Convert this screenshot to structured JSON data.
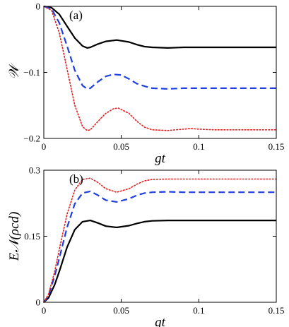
{
  "chart_data": [
    {
      "type": "line",
      "panel_label": "(a)",
      "xlabel": "gt",
      "ylabel": "𝒲",
      "xlim": [
        0,
        0.15
      ],
      "ylim": [
        -0.2,
        0
      ],
      "xticks": [
        0,
        0.05,
        0.1,
        0.15
      ],
      "xtick_labels": [
        "0",
        "0.05",
        "0.1",
        "0.15"
      ],
      "yticks": [
        0,
        -0.1,
        -0.2
      ],
      "ytick_labels": [
        "0",
        "−0.1",
        "−0.2"
      ],
      "grid": false,
      "series": [
        {
          "color": "#000000",
          "style": "solid",
          "x": [
            0,
            0.005,
            0.01,
            0.015,
            0.02,
            0.025,
            0.028,
            0.03,
            0.035,
            0.04,
            0.047,
            0.055,
            0.06,
            0.065,
            0.07,
            0.08,
            0.09,
            0.1,
            0.11,
            0.12,
            0.13,
            0.14,
            0.15
          ],
          "y": [
            0,
            -0.002,
            -0.012,
            -0.03,
            -0.048,
            -0.06,
            -0.063,
            -0.062,
            -0.057,
            -0.053,
            -0.051,
            -0.054,
            -0.058,
            -0.061,
            -0.062,
            -0.063,
            -0.062,
            -0.062,
            -0.062,
            -0.062,
            -0.062,
            -0.062,
            -0.062
          ]
        },
        {
          "color": "#1f3fe0",
          "style": "dashed",
          "x": [
            0,
            0.005,
            0.01,
            0.015,
            0.02,
            0.025,
            0.028,
            0.03,
            0.035,
            0.04,
            0.045,
            0.05,
            0.055,
            0.06,
            0.065,
            0.07,
            0.08,
            0.09,
            0.1,
            0.11,
            0.12,
            0.13,
            0.14,
            0.15
          ],
          "y": [
            0,
            -0.004,
            -0.025,
            -0.06,
            -0.097,
            -0.12,
            -0.125,
            -0.124,
            -0.114,
            -0.106,
            -0.103,
            -0.104,
            -0.11,
            -0.117,
            -0.121,
            -0.124,
            -0.125,
            -0.124,
            -0.124,
            -0.124,
            -0.124,
            -0.124,
            -0.124,
            -0.124
          ]
        },
        {
          "color": "#e02020",
          "style": "dotted",
          "x": [
            0,
            0.005,
            0.01,
            0.015,
            0.02,
            0.025,
            0.028,
            0.03,
            0.035,
            0.04,
            0.045,
            0.048,
            0.055,
            0.06,
            0.065,
            0.07,
            0.08,
            0.09,
            0.095,
            0.1,
            0.11,
            0.12,
            0.13,
            0.14,
            0.15
          ],
          "y": [
            0,
            -0.006,
            -0.04,
            -0.095,
            -0.15,
            -0.182,
            -0.188,
            -0.187,
            -0.174,
            -0.162,
            -0.155,
            -0.154,
            -0.162,
            -0.174,
            -0.183,
            -0.187,
            -0.188,
            -0.186,
            -0.185,
            -0.186,
            -0.187,
            -0.187,
            -0.187,
            -0.187,
            -0.187
          ]
        }
      ]
    },
    {
      "type": "line",
      "panel_label": "(b)",
      "xlabel": "gt",
      "ylabel": "E𝒩(ρcd)",
      "xlim": [
        0,
        0.15
      ],
      "ylim": [
        0,
        0.3
      ],
      "xticks": [
        0,
        0.05,
        0.1,
        0.15
      ],
      "xtick_labels": [
        "0",
        "0.05",
        "0.1",
        "0.15"
      ],
      "yticks": [
        0,
        0.15,
        0.3
      ],
      "ytick_labels": [
        "0",
        "0.15",
        "0.3"
      ],
      "grid": false,
      "series": [
        {
          "color": "#000000",
          "style": "solid",
          "x": [
            0,
            0.003,
            0.007,
            0.01,
            0.015,
            0.02,
            0.025,
            0.03,
            0.035,
            0.04,
            0.047,
            0.055,
            0.06,
            0.065,
            0.07,
            0.08,
            0.09,
            0.1,
            0.11,
            0.12,
            0.13,
            0.14,
            0.15
          ],
          "y": [
            0,
            0.01,
            0.04,
            0.07,
            0.125,
            0.165,
            0.183,
            0.186,
            0.18,
            0.173,
            0.17,
            0.174,
            0.179,
            0.183,
            0.185,
            0.186,
            0.186,
            0.186,
            0.186,
            0.186,
            0.186,
            0.186,
            0.186
          ]
        },
        {
          "color": "#1f3fe0",
          "style": "dashed",
          "x": [
            0,
            0.003,
            0.007,
            0.01,
            0.015,
            0.02,
            0.025,
            0.03,
            0.035,
            0.04,
            0.047,
            0.055,
            0.06,
            0.065,
            0.07,
            0.08,
            0.09,
            0.1,
            0.11,
            0.12,
            0.13,
            0.14,
            0.15
          ],
          "y": [
            0,
            0.015,
            0.06,
            0.1,
            0.17,
            0.224,
            0.248,
            0.252,
            0.243,
            0.232,
            0.228,
            0.235,
            0.243,
            0.248,
            0.25,
            0.251,
            0.25,
            0.25,
            0.25,
            0.25,
            0.25,
            0.25,
            0.25
          ]
        },
        {
          "color": "#e02020",
          "style": "dotted",
          "x": [
            0,
            0.003,
            0.007,
            0.01,
            0.015,
            0.02,
            0.025,
            0.03,
            0.035,
            0.04,
            0.047,
            0.055,
            0.06,
            0.065,
            0.07,
            0.08,
            0.09,
            0.1,
            0.11,
            0.12,
            0.13,
            0.14,
            0.15
          ],
          "y": [
            0,
            0.018,
            0.07,
            0.12,
            0.2,
            0.255,
            0.279,
            0.282,
            0.272,
            0.258,
            0.25,
            0.258,
            0.268,
            0.276,
            0.279,
            0.28,
            0.28,
            0.28,
            0.28,
            0.28,
            0.28,
            0.28,
            0.28
          ]
        }
      ]
    }
  ]
}
